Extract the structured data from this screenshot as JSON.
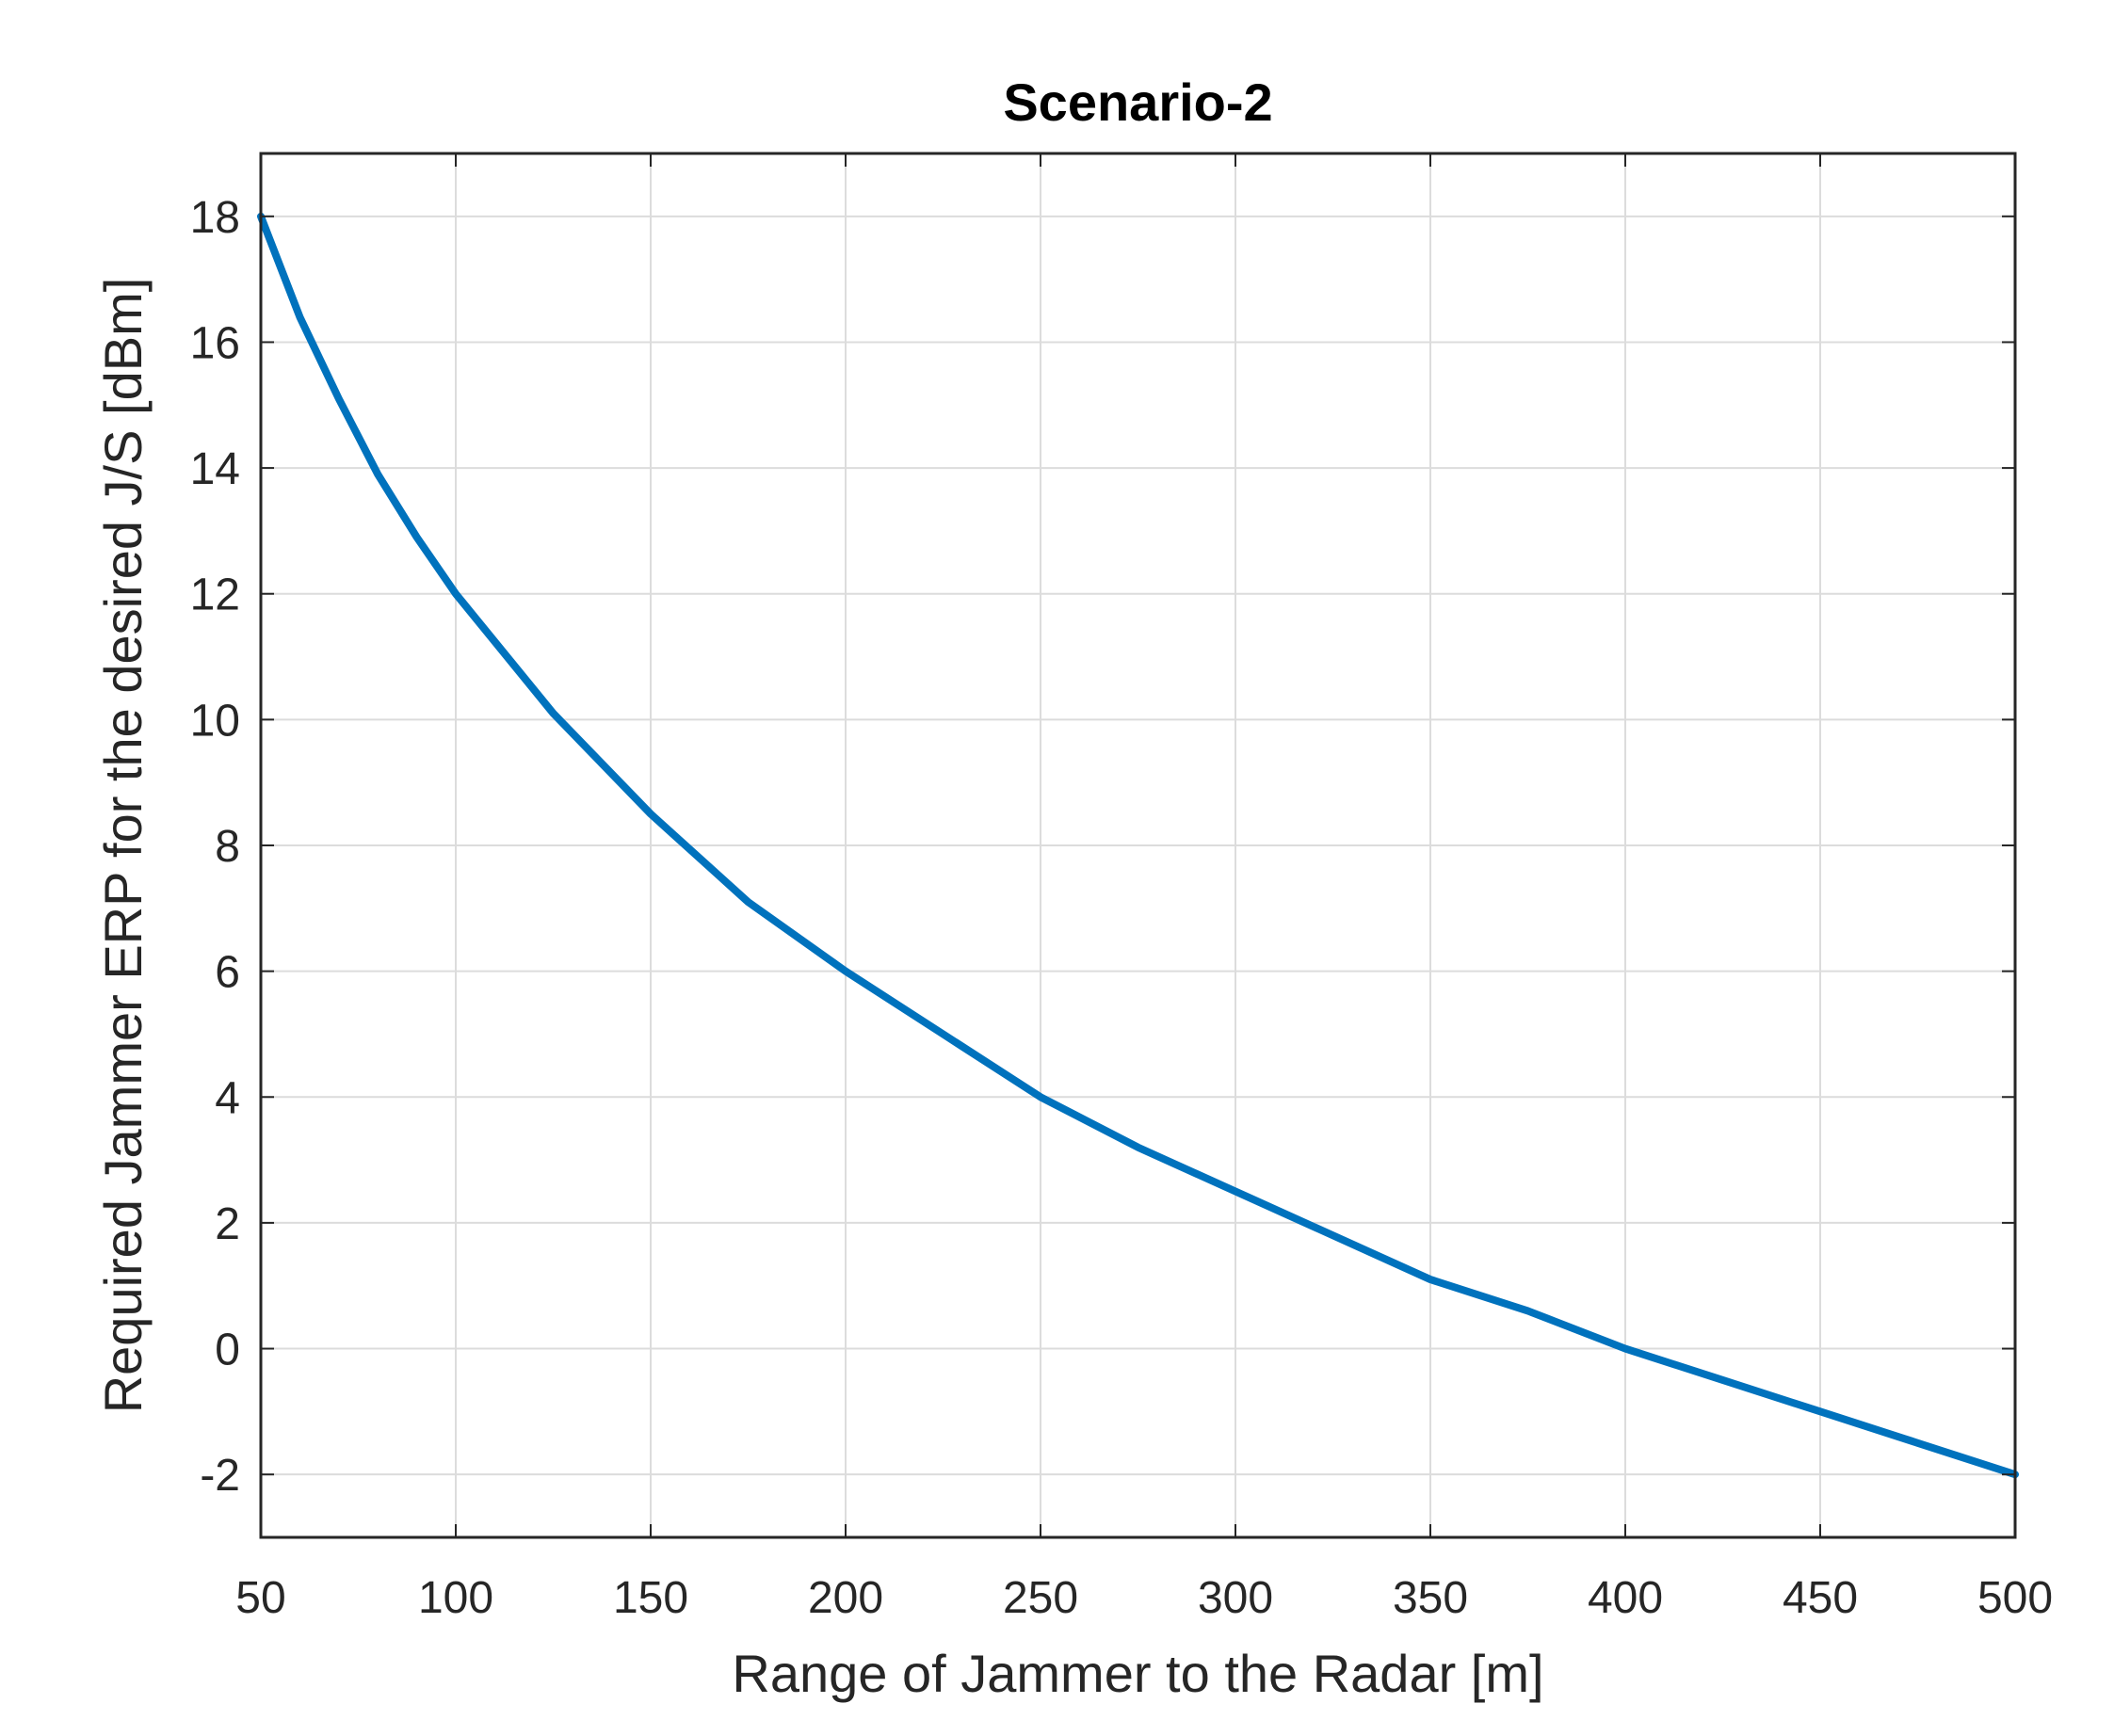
{
  "chart_data": {
    "type": "line",
    "title": "Scenario-2",
    "xlabel": "Range of Jammer to the Radar [m]",
    "ylabel": "Required Jammer ERP for the desired J/S [dBm]",
    "xlim": [
      50,
      500
    ],
    "ylim": [
      -3,
      19
    ],
    "xticks": [
      50,
      100,
      150,
      200,
      250,
      300,
      350,
      400,
      450,
      500
    ],
    "yticks": [
      -2,
      0,
      2,
      4,
      6,
      8,
      10,
      12,
      14,
      16,
      18
    ],
    "xtick_labels": [
      "50",
      "100",
      "150",
      "200",
      "250",
      "300",
      "350",
      "400",
      "450",
      "500"
    ],
    "ytick_labels": [
      "-2",
      "0",
      "2",
      "4",
      "6",
      "8",
      "10",
      "12",
      "14",
      "16",
      "18"
    ],
    "grid": true,
    "series": [
      {
        "color": "#0072BD",
        "x": [
          50,
          60,
          70,
          80,
          90,
          100,
          125,
          150,
          175,
          200,
          225,
          250,
          275,
          300,
          325,
          350,
          375,
          400,
          425,
          450,
          475,
          500
        ],
        "y": [
          18.0,
          16.4,
          15.1,
          13.9,
          12.9,
          12.0,
          10.1,
          8.5,
          7.1,
          6.0,
          5.0,
          4.0,
          3.2,
          2.5,
          1.8,
          1.1,
          0.6,
          0.0,
          -0.5,
          -1.0,
          -1.5,
          -2.0
        ]
      }
    ]
  }
}
